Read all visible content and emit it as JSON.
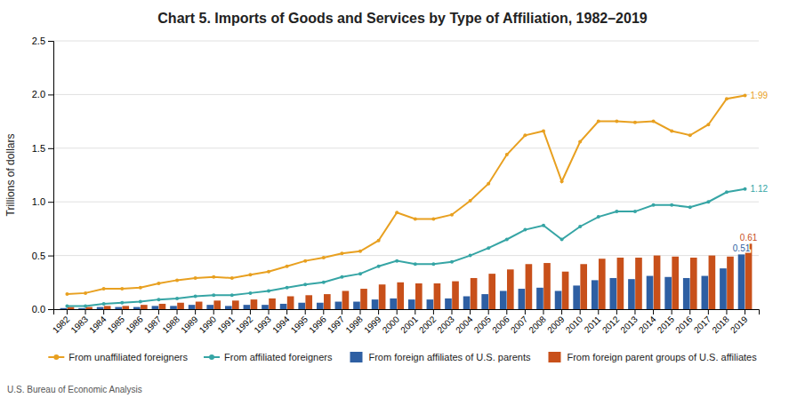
{
  "chart_data": {
    "type": "bar",
    "title": "Chart 5. Imports of Goods and Services by Type of Affiliation, 1982–2019",
    "ylabel": "Trillions of dollars",
    "source": "U.S. Bureau of Economic Analysis",
    "categories": [
      "1982",
      "1983",
      "1984",
      "1985",
      "1986",
      "1987",
      "1988",
      "1989",
      "1990",
      "1991",
      "1992",
      "1993",
      "1994",
      "1995",
      "1996",
      "1997",
      "1998",
      "1999",
      "2000",
      "2001",
      "2002",
      "2003",
      "2004",
      "2005",
      "2006",
      "2007",
      "2008",
      "2009",
      "2010",
      "2011",
      "2012",
      "2013",
      "2014",
      "2015",
      "2016",
      "2017",
      "2018",
      "2019"
    ],
    "series": [
      {
        "name": "From unaffiliated foreigners",
        "type": "line",
        "marker": "circle",
        "color": "#E8A020",
        "values": [
          0.14,
          0.15,
          0.19,
          0.19,
          0.2,
          0.24,
          0.27,
          0.29,
          0.3,
          0.29,
          0.32,
          0.35,
          0.4,
          0.45,
          0.48,
          0.52,
          0.54,
          0.64,
          0.9,
          0.84,
          0.84,
          0.88,
          1.01,
          1.17,
          1.44,
          1.62,
          1.66,
          1.19,
          1.56,
          1.75,
          1.75,
          1.74,
          1.75,
          1.66,
          1.62,
          1.72,
          1.96,
          1.99
        ]
      },
      {
        "name": "From affiliated foreigners",
        "type": "line",
        "marker": "circle",
        "color": "#36A5A5",
        "values": [
          0.03,
          0.03,
          0.05,
          0.06,
          0.07,
          0.09,
          0.1,
          0.12,
          0.13,
          0.13,
          0.15,
          0.17,
          0.2,
          0.23,
          0.25,
          0.3,
          0.33,
          0.4,
          0.45,
          0.42,
          0.42,
          0.44,
          0.5,
          0.57,
          0.65,
          0.74,
          0.78,
          0.65,
          0.77,
          0.86,
          0.91,
          0.91,
          0.97,
          0.97,
          0.95,
          1.0,
          1.09,
          1.12
        ]
      },
      {
        "name": "From foreign affiliates of U.S. parents",
        "type": "bar",
        "color": "#2E5FA3",
        "values": [
          0.01,
          0.01,
          0.02,
          0.02,
          0.02,
          0.03,
          0.03,
          0.04,
          0.04,
          0.03,
          0.04,
          0.04,
          0.05,
          0.06,
          0.06,
          0.07,
          0.07,
          0.09,
          0.1,
          0.09,
          0.09,
          0.1,
          0.12,
          0.14,
          0.17,
          0.19,
          0.2,
          0.17,
          0.22,
          0.27,
          0.29,
          0.28,
          0.31,
          0.3,
          0.29,
          0.31,
          0.38,
          0.51
        ]
      },
      {
        "name": "From foreign parent groups of U.S. affiliates",
        "type": "bar",
        "color": "#C8501A",
        "values": [
          0.02,
          0.02,
          0.03,
          0.03,
          0.04,
          0.05,
          0.06,
          0.07,
          0.08,
          0.08,
          0.09,
          0.1,
          0.12,
          0.13,
          0.14,
          0.17,
          0.19,
          0.23,
          0.25,
          0.24,
          0.24,
          0.26,
          0.29,
          0.33,
          0.37,
          0.42,
          0.43,
          0.35,
          0.42,
          0.47,
          0.48,
          0.48,
          0.5,
          0.49,
          0.48,
          0.5,
          0.49,
          0.61
        ]
      }
    ],
    "ylim": [
      0,
      2.5
    ],
    "yticks": [
      {
        "value": 0,
        "label": "0.0"
      },
      0.5,
      {
        "value": 1,
        "label": "1.0"
      },
      1.5,
      {
        "value": 2,
        "label": "2.0"
      },
      2.5
    ],
    "grid": true,
    "legend": "bottom",
    "annotations": [
      {
        "text": "1.99",
        "series": "From unaffiliated foreigners",
        "x": "2019",
        "y": 1.99
      },
      {
        "text": "1.12",
        "series": "From affiliated foreigners",
        "x": "2019",
        "y": 1.12
      },
      {
        "text": "0.51",
        "series": "From foreign affiliates of U.S. parents",
        "x": "2019",
        "y": 0.51
      },
      {
        "text": "0.61",
        "series": "From foreign parent groups of U.S. affiliates",
        "x": "2019",
        "y": 0.61
      }
    ]
  }
}
